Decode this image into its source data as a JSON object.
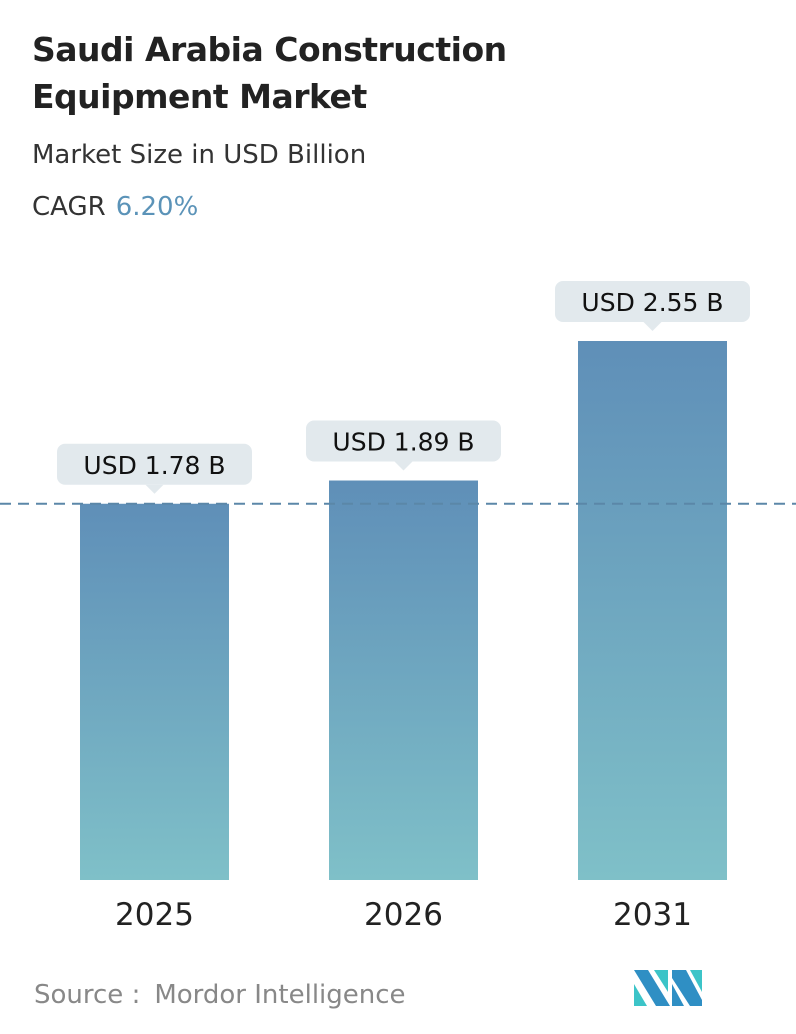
{
  "header": {
    "title_line1": "Saudi Arabia Construction",
    "title_line2": "Equipment Market",
    "subtitle": "Market Size in USD Billion",
    "cagr_label": "CAGR",
    "cagr_value": "6.20%"
  },
  "chart_data": {
    "type": "bar",
    "categories": [
      "2025",
      "2026",
      "2031"
    ],
    "values": [
      1.78,
      1.89,
      2.55
    ],
    "data_labels": [
      "USD 1.78 B",
      "USD 1.89 B",
      "USD 2.55 B"
    ],
    "ylabel": "",
    "xlabel": "",
    "ylim": [
      0,
      2.55
    ],
    "reference_line": 1.78,
    "grid": false,
    "colors": {
      "bar_top": "#5f8fb8",
      "bar_bottom": "#7fc0c8",
      "label_bg": "#e2e9ed",
      "dash": "#5b87a8"
    }
  },
  "footer": {
    "source_label": "Source :",
    "source_name": "Mordor Intelligence",
    "logo_text": "Mordor Intelligence logo"
  }
}
